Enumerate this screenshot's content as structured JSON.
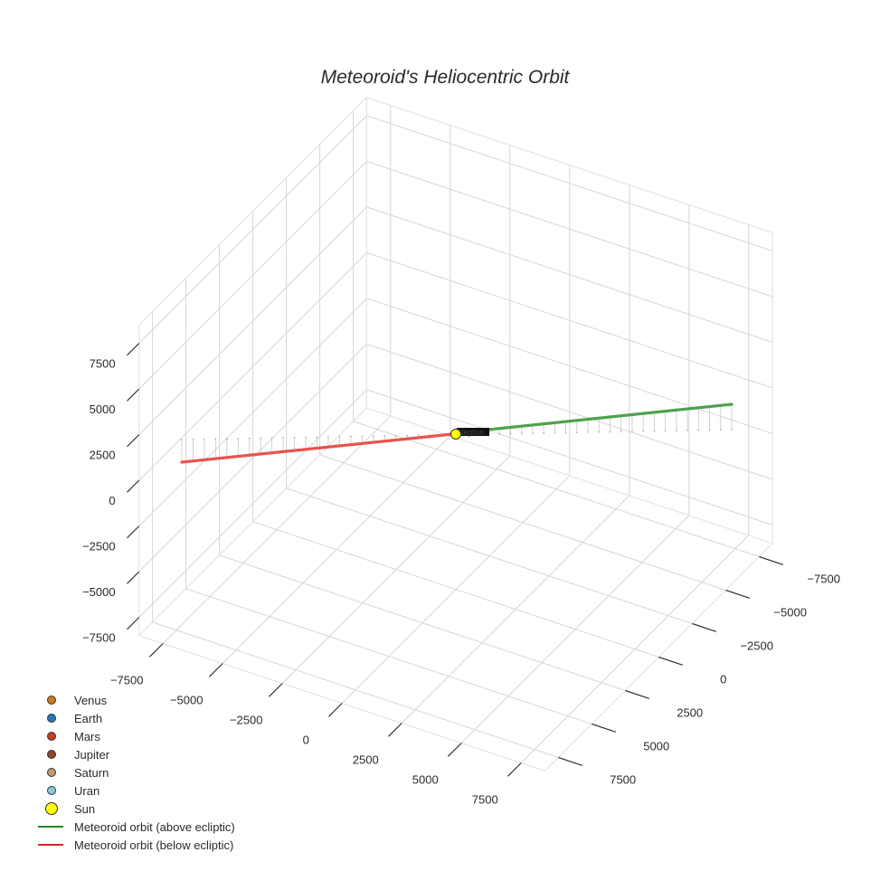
{
  "title": "Meteoroid's Heliocentric Orbit",
  "colors": {
    "Venus": "#c77b1e",
    "Earth": "#1f78c1",
    "Mars": "#c8401c",
    "Jupiter": "#8b4a2b",
    "Saturn": "#c39a72",
    "Uran": "#8cc8e0",
    "Sun": "#ffff00",
    "above": "#2ca02c",
    "below": "#e02020"
  },
  "legend": [
    {
      "label": "Venus",
      "symbol": "dot",
      "color": "#c77b1e"
    },
    {
      "label": "Earth",
      "symbol": "dot",
      "color": "#1f78c1"
    },
    {
      "label": "Mars",
      "symbol": "dot",
      "color": "#c8401c"
    },
    {
      "label": "Jupiter",
      "symbol": "dot",
      "color": "#8b4a2b"
    },
    {
      "label": "Saturn",
      "symbol": "dot",
      "color": "#c39a72"
    },
    {
      "label": "Uran",
      "symbol": "dot",
      "color": "#8cc8e0"
    },
    {
      "label": "Sun",
      "symbol": "bigdot",
      "color": "#ffff00"
    },
    {
      "label": "Meteoroid orbit (above ecliptic)",
      "symbol": "line",
      "color": "#228b22"
    },
    {
      "label": "Meteoroid orbit (below ecliptic)",
      "symbol": "line",
      "color": "#e02020"
    }
  ],
  "axes": {
    "x_ticks": [
      "−7500",
      "−5000",
      "−2500",
      "0",
      "2500",
      "5000",
      "7500"
    ],
    "y_ticks": [
      "−7500",
      "−5000",
      "−2500",
      "0",
      "2500",
      "5000",
      "7500"
    ],
    "z_ticks": [
      "7500",
      "5000",
      "2500",
      "0",
      "−2500",
      "−5000",
      "−7500"
    ]
  },
  "chart_data": {
    "type": "scatter3d",
    "title": "Meteoroid's Heliocentric Orbit",
    "xlabel": "",
    "ylabel": "",
    "zlabel": "",
    "x_range": [
      -8500,
      8500
    ],
    "y_range": [
      -8500,
      8500
    ],
    "z_range": [
      -8500,
      8500
    ],
    "x_ticks": [
      -7500,
      -5000,
      -2500,
      0,
      2500,
      5000,
      7500
    ],
    "y_ticks": [
      -7500,
      -5000,
      -2500,
      0,
      2500,
      5000,
      7500
    ],
    "z_ticks": [
      -7500,
      -5000,
      -2500,
      0,
      2500,
      5000,
      7500
    ],
    "grid": true,
    "legend_position": "bottom-left",
    "series": [
      {
        "name": "Venus",
        "type": "marker",
        "points": [
          [
            0,
            0,
            0
          ]
        ]
      },
      {
        "name": "Earth",
        "type": "marker",
        "points": [
          [
            0,
            0,
            0
          ]
        ]
      },
      {
        "name": "Mars",
        "type": "marker",
        "points": [
          [
            0,
            0,
            0
          ]
        ]
      },
      {
        "name": "Jupiter",
        "type": "marker",
        "points": [
          [
            0,
            0,
            0
          ]
        ]
      },
      {
        "name": "Saturn",
        "type": "marker",
        "points": [
          [
            0,
            0,
            0
          ]
        ]
      },
      {
        "name": "Uran",
        "type": "marker",
        "points": [
          [
            0,
            0,
            0
          ]
        ]
      },
      {
        "name": "Sun",
        "type": "marker",
        "points": [
          [
            0,
            0,
            0
          ]
        ]
      },
      {
        "name": "Meteoroid orbit (above ecliptic)",
        "type": "line",
        "start": [
          0,
          0,
          0
        ],
        "end": [
          2500,
          -7500,
          1300
        ]
      },
      {
        "name": "Meteoroid orbit (below ecliptic)",
        "type": "line",
        "start": [
          0,
          0,
          0
        ],
        "end": [
          -2500,
          7500,
          -1300
        ]
      }
    ],
    "annotations": [
      "Overlapping planet name labels at the Sun position"
    ]
  }
}
